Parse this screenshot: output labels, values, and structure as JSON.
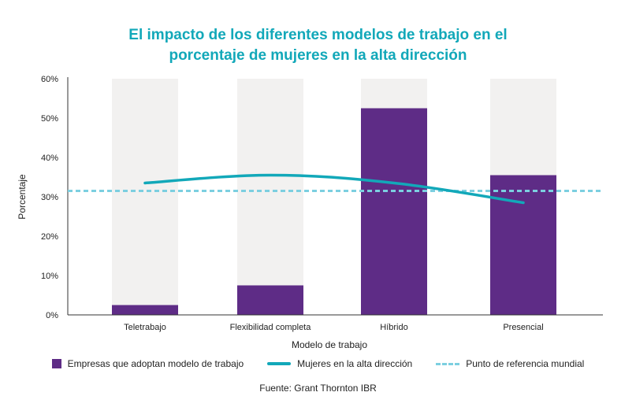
{
  "chart_data": {
    "type": "bar",
    "title_lines": [
      "El impacto de los diferentes modelos de trabajo en el",
      "porcentaje de mujeres en la alta dirección"
    ],
    "xlabel": "Modelo de trabajo",
    "ylabel": "Porcentaje",
    "ylim": [
      0,
      60
    ],
    "yticks": [
      0,
      10,
      20,
      30,
      40,
      50,
      60
    ],
    "ytick_labels": [
      "0%",
      "10%",
      "20%",
      "30%",
      "40%",
      "50%",
      "60%"
    ],
    "categories": [
      "Teletrabajo",
      "Flexibilidad completa",
      "Híbrido",
      "Presencial"
    ],
    "series": [
      {
        "name": "Empresas que adoptan modelo de trabajo",
        "type": "bar",
        "values": [
          2.5,
          7.5,
          52.5,
          35.5
        ],
        "color": "#5e2c86"
      },
      {
        "name": "Mujeres en la alta dirección",
        "type": "line",
        "values": [
          33.5,
          35.5,
          33.5,
          28.5
        ],
        "color": "#12a8b9"
      },
      {
        "name": "Punto de referencia mundial",
        "type": "reference-line",
        "value": 31.5,
        "color": "#7ccfe0"
      }
    ],
    "background_bar_color": "#f2f1f0",
    "legend_position": "bottom",
    "grid": false
  },
  "source": "Fuente: Grant Thornton IBR"
}
